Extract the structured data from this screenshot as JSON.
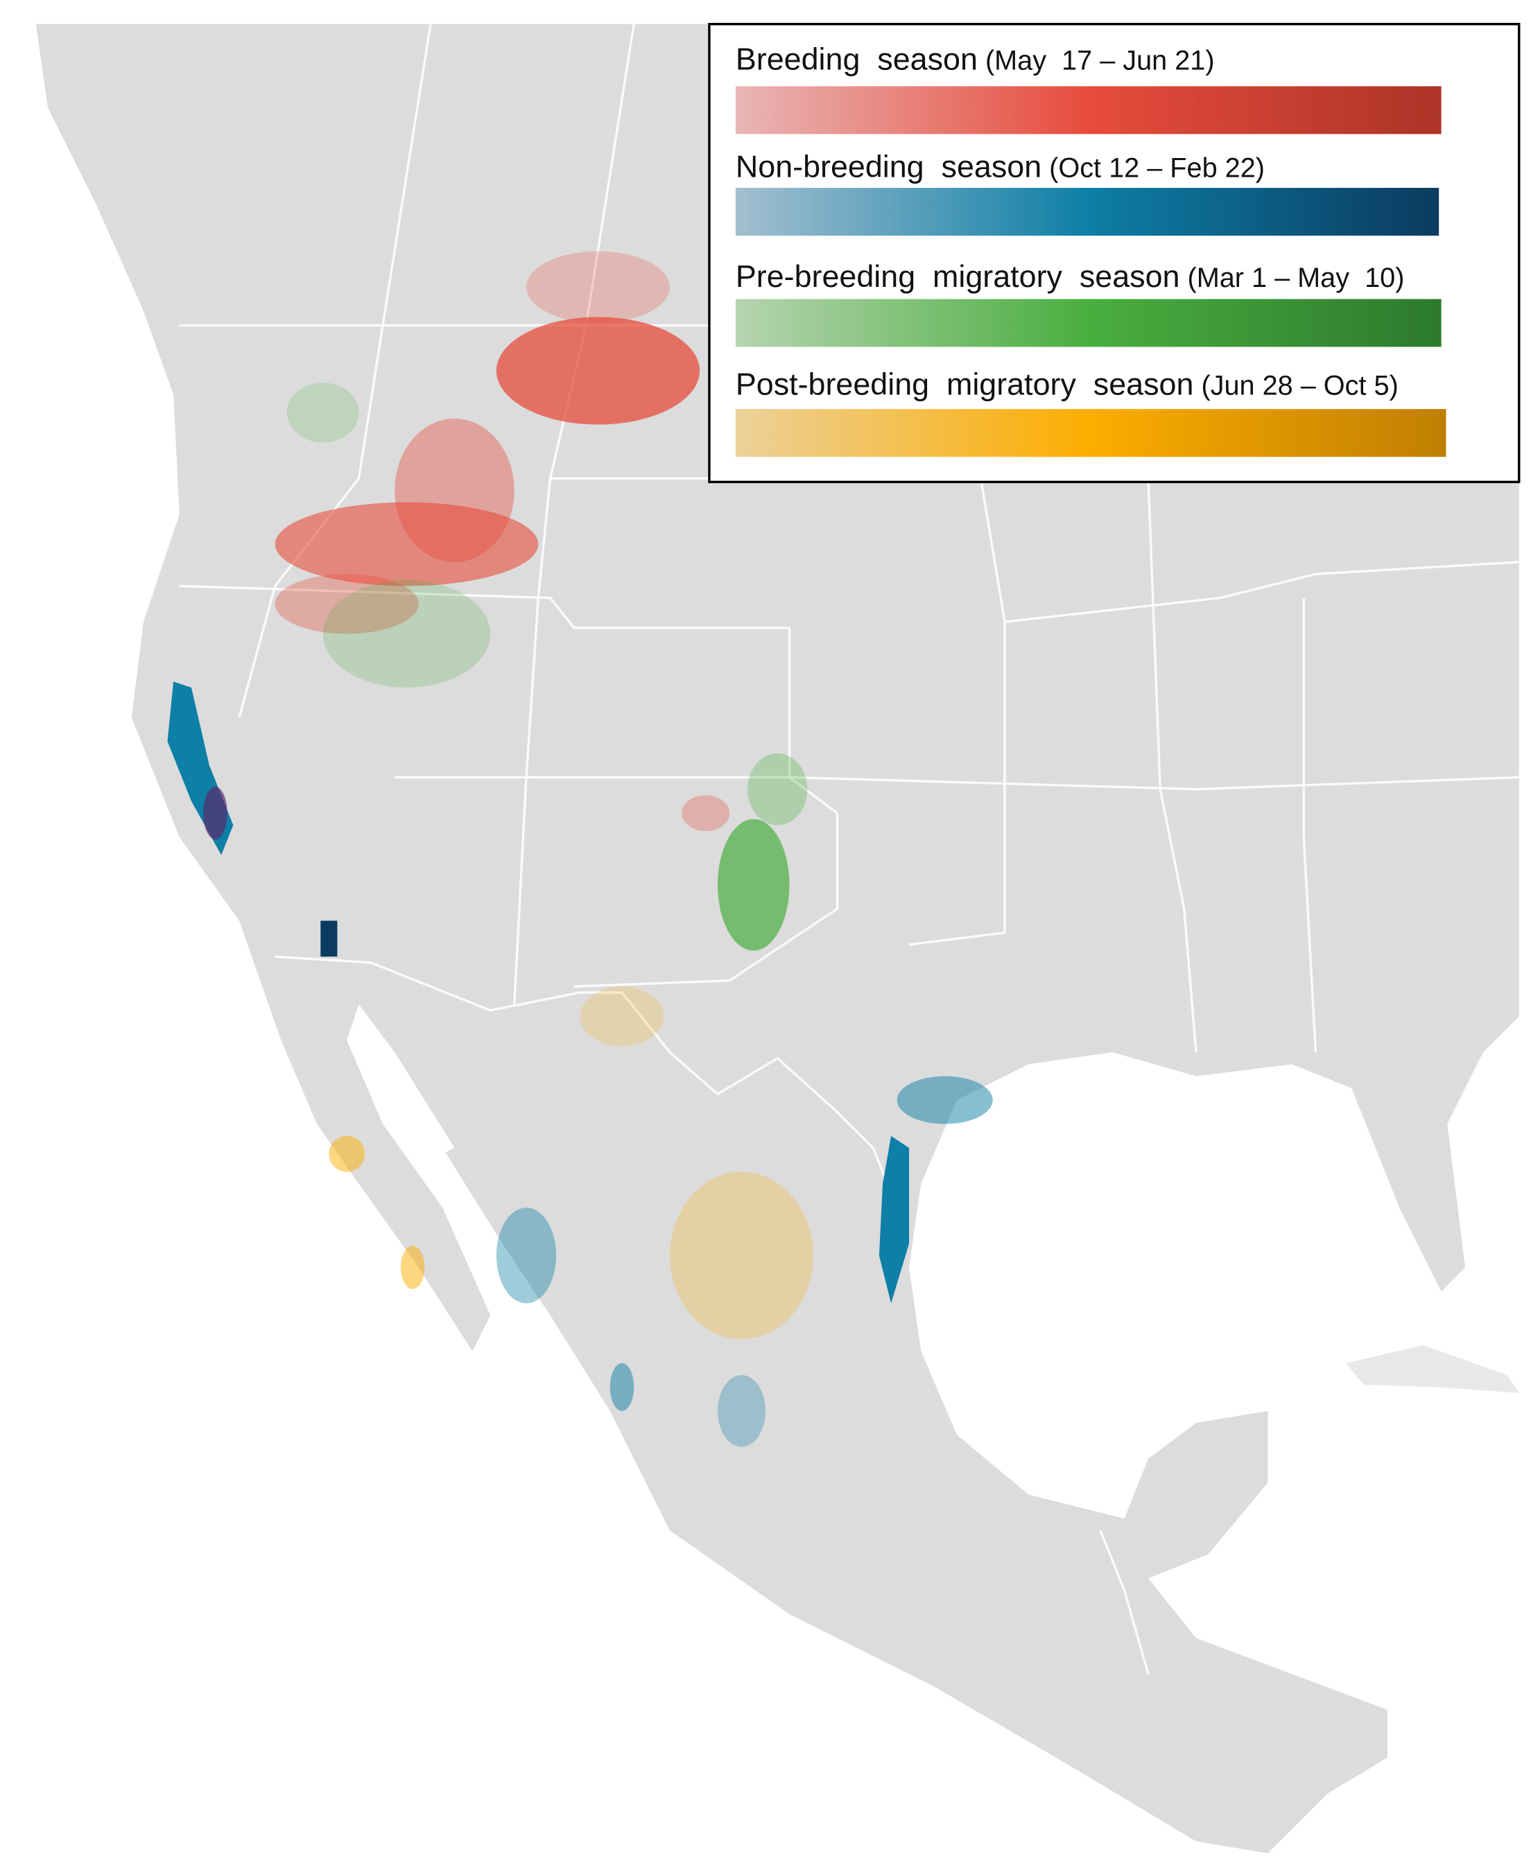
{
  "legend": {
    "items": [
      {
        "name": "Breeding  season",
        "dates": "(May  17 – Jun 21)",
        "colors": [
          "#e8b6b6",
          "#e74c3c",
          "#ac3427"
        ]
      },
      {
        "name": "Non-breeding  season",
        "dates": "(Oct 12 – Feb 22)",
        "colors": [
          "#a3bfd0",
          "#0e7fa6",
          "#0b3b60"
        ]
      },
      {
        "name": "Pre-breeding  migratory  season",
        "dates": "(Mar 1 – May  10)",
        "colors": [
          "#b6d4b0",
          "#4aae3f",
          "#2d7a2d"
        ]
      },
      {
        "name": "Post-breeding  migratory  season",
        "dates": "(Jun 28 – Oct 5)",
        "colors": [
          "#ecd199",
          "#fcad00",
          "#c07f02"
        ]
      }
    ]
  }
}
